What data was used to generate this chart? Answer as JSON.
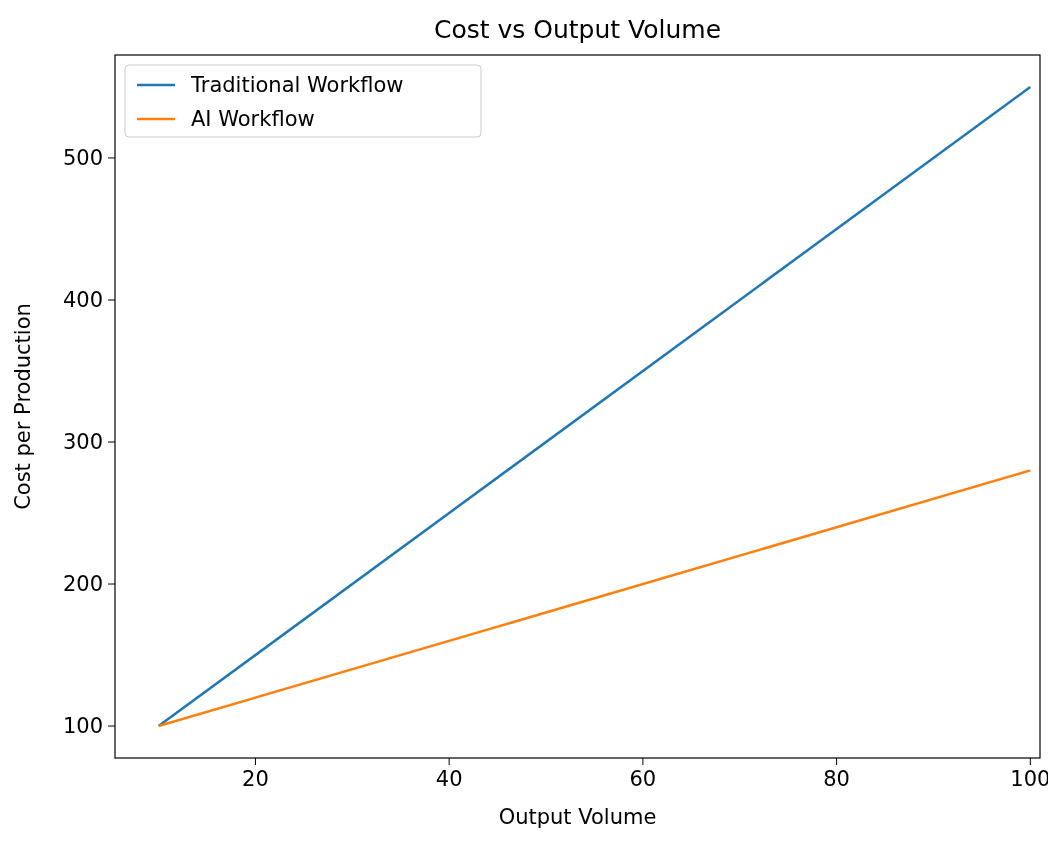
{
  "chart_data": {
    "type": "line",
    "title": "Cost vs Output Volume",
    "xlabel": "Output Volume",
    "ylabel": "Cost per Production",
    "xlim": [
      5.5,
      101
    ],
    "xticks": [
      20,
      40,
      60,
      80,
      100
    ],
    "ylim": [
      77.5,
      572.5
    ],
    "yticks": [
      100,
      200,
      300,
      400,
      500
    ],
    "grid": false,
    "legend": "top left",
    "line_style": "solid",
    "marker": "none",
    "x": [
      10,
      100
    ],
    "series": [
      {
        "name": "Traditional Workflow",
        "color": "#1f77b4",
        "values": [
          100,
          550
        ]
      },
      {
        "name": "AI Workflow",
        "color": "#ff7f0e",
        "values": [
          100,
          280
        ]
      }
    ]
  }
}
